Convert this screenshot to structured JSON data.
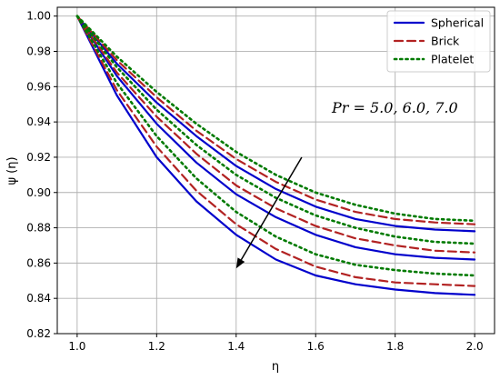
{
  "chart_data": {
    "type": "line",
    "xlabel": "η",
    "ylabel": "ψ (η)",
    "xlim": [
      0.95,
      2.05
    ],
    "ylim": [
      0.82,
      1.005
    ],
    "xticks": [
      "1.0",
      "1.2",
      "1.4",
      "1.6",
      "1.8",
      "2.0"
    ],
    "yticks": [
      "0.82",
      "0.84",
      "0.86",
      "0.88",
      "0.90",
      "0.92",
      "0.94",
      "0.96",
      "0.98",
      "1.00"
    ],
    "grid": true,
    "legend_position": "top-right",
    "legend": [
      {
        "label": "Spherical",
        "color": "#0000cc",
        "style": "solid"
      },
      {
        "label": "Brick",
        "color": "#b22222",
        "style": "dashed"
      },
      {
        "label": "Platelet",
        "color": "#007a00",
        "style": "dotted"
      }
    ],
    "annotation": "Pr = 5.0, 6.0, 7.0",
    "annotation_arrow": {
      "from": [
        1.565,
        0.92
      ],
      "to": [
        1.4,
        0.857
      ]
    },
    "x": [
      1.0,
      1.1,
      1.2,
      1.3,
      1.4,
      1.5,
      1.6,
      1.7,
      1.8,
      1.9,
      2.0
    ],
    "series": [
      {
        "shape": "Spherical",
        "color": "#0000cc",
        "style": "solid",
        "values": [
          1.0,
          0.973,
          0.951,
          0.932,
          0.915,
          0.902,
          0.892,
          0.885,
          0.881,
          0.879,
          0.878
        ]
      },
      {
        "shape": "Spherical",
        "color": "#0000cc",
        "style": "solid",
        "values": [
          1.0,
          0.966,
          0.939,
          0.917,
          0.899,
          0.886,
          0.876,
          0.869,
          0.865,
          0.863,
          0.862
        ]
      },
      {
        "shape": "Spherical",
        "color": "#0000cc",
        "style": "solid",
        "values": [
          1.0,
          0.955,
          0.92,
          0.895,
          0.876,
          0.862,
          0.853,
          0.848,
          0.845,
          0.843,
          0.842
        ]
      },
      {
        "shape": "Brick",
        "color": "#b22222",
        "style": "dashed",
        "values": [
          1.0,
          0.975,
          0.954,
          0.935,
          0.919,
          0.906,
          0.896,
          0.889,
          0.885,
          0.883,
          0.882
        ]
      },
      {
        "shape": "Brick",
        "color": "#b22222",
        "style": "dashed",
        "values": [
          1.0,
          0.968,
          0.943,
          0.922,
          0.904,
          0.891,
          0.881,
          0.874,
          0.87,
          0.867,
          0.866
        ]
      },
      {
        "shape": "Brick",
        "color": "#b22222",
        "style": "dashed",
        "values": [
          1.0,
          0.958,
          0.926,
          0.901,
          0.882,
          0.868,
          0.858,
          0.852,
          0.849,
          0.848,
          0.847
        ]
      },
      {
        "shape": "Platelet",
        "color": "#007a00",
        "style": "dotted",
        "values": [
          1.0,
          0.977,
          0.957,
          0.939,
          0.923,
          0.91,
          0.9,
          0.893,
          0.888,
          0.885,
          0.884
        ]
      },
      {
        "shape": "Platelet",
        "color": "#007a00",
        "style": "dotted",
        "values": [
          1.0,
          0.971,
          0.947,
          0.927,
          0.91,
          0.897,
          0.887,
          0.88,
          0.875,
          0.872,
          0.871
        ]
      },
      {
        "shape": "Platelet",
        "color": "#007a00",
        "style": "dotted",
        "values": [
          1.0,
          0.962,
          0.932,
          0.908,
          0.889,
          0.875,
          0.865,
          0.859,
          0.856,
          0.854,
          0.853
        ]
      }
    ]
  }
}
